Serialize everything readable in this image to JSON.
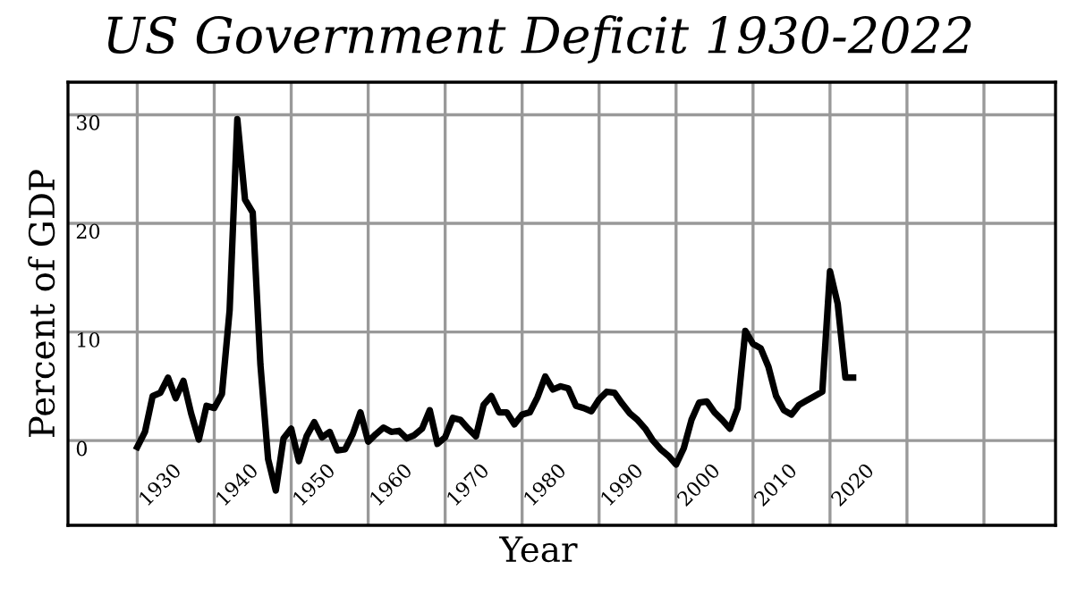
{
  "chart_data": {
    "type": "line",
    "title": "US Government Deficit 1930-2022",
    "xlabel": "Year",
    "ylabel": "Percent of GDP",
    "x": [
      1930,
      1931,
      1932,
      1933,
      1934,
      1935,
      1936,
      1937,
      1938,
      1939,
      1940,
      1941,
      1942,
      1943,
      1944,
      1945,
      1946,
      1947,
      1948,
      1949,
      1950,
      1951,
      1952,
      1953,
      1954,
      1955,
      1956,
      1957,
      1958,
      1959,
      1960,
      1961,
      1962,
      1963,
      1964,
      1965,
      1966,
      1967,
      1968,
      1969,
      1970,
      1971,
      1972,
      1973,
      1974,
      1975,
      1976,
      1977,
      1978,
      1979,
      1980,
      1981,
      1982,
      1983,
      1984,
      1985,
      1986,
      1987,
      1988,
      1989,
      1990,
      1991,
      1992,
      1993,
      1994,
      1995,
      1996,
      1997,
      1998,
      1999,
      2000,
      2001,
      2002,
      2003,
      2004,
      2005,
      2006,
      2007,
      2008,
      2009,
      2010,
      2011,
      2012,
      2013,
      2014,
      2015,
      2016,
      2017,
      2018,
      2019,
      2020,
      2021,
      2022,
      2023
    ],
    "series": [
      {
        "color": "#000000",
        "values": [
          -0.6,
          0.8,
          4.1,
          4.4,
          5.8,
          3.9,
          5.5,
          2.5,
          0.1,
          3.2,
          3.0,
          4.3,
          12.0,
          29.6,
          22.2,
          21.0,
          7.0,
          -1.7,
          -4.6,
          0.2,
          1.1,
          -1.9,
          0.4,
          1.7,
          0.3,
          0.8,
          -0.9,
          -0.8,
          0.6,
          2.6,
          -0.1,
          0.6,
          1.2,
          0.8,
          0.9,
          0.2,
          0.5,
          1.1,
          2.8,
          -0.3,
          0.3,
          2.1,
          1.9,
          1.1,
          0.4,
          3.3,
          4.1,
          2.6,
          2.6,
          1.5,
          2.4,
          2.6,
          4.0,
          5.9,
          4.7,
          5.0,
          4.8,
          3.2,
          3.0,
          2.7,
          3.8,
          4.5,
          4.4,
          3.4,
          2.5,
          1.9,
          1.1,
          0.0,
          -0.8,
          -1.4,
          -2.2,
          -0.7,
          1.9,
          3.5,
          3.6,
          2.6,
          1.9,
          1.1,
          3.0,
          10.1,
          8.9,
          8.5,
          6.8,
          4.1,
          2.8,
          2.4,
          3.3,
          3.7,
          4.1,
          4.5,
          15.6,
          12.6,
          5.8,
          5.8
        ]
      }
    ],
    "xlim": [
      1921,
      2049.3
    ],
    "ylim": [
      -7.8,
      33
    ],
    "xticks": [
      1930,
      1940,
      1950,
      1960,
      1970,
      1980,
      1990,
      2000,
      2010,
      2020,
      {
        "value": 2030,
        "label": null
      },
      {
        "value": 2040,
        "label": null
      }
    ],
    "yticks": [
      0,
      10,
      20,
      30
    ],
    "grid": true,
    "legend": false,
    "marker": "none",
    "line_style": "solid"
  }
}
